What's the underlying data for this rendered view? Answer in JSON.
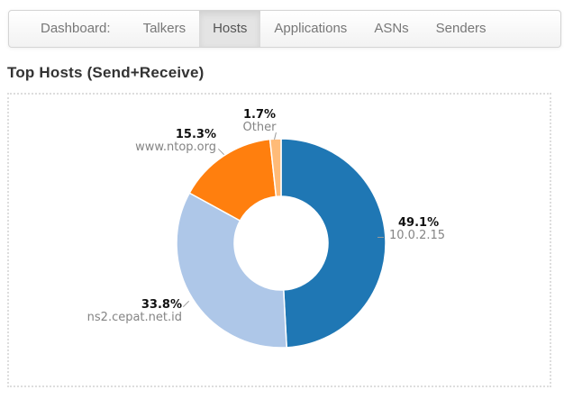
{
  "navbar": {
    "brand": "Dashboard:",
    "items": [
      {
        "label": "Talkers",
        "active": false
      },
      {
        "label": "Hosts",
        "active": true
      },
      {
        "label": "Applications",
        "active": false
      },
      {
        "label": "ASNs",
        "active": false
      },
      {
        "label": "Senders",
        "active": false
      }
    ]
  },
  "page": {
    "title": "Top Hosts (Send+Receive)"
  },
  "chart_data": {
    "type": "pie",
    "subtype": "donut",
    "title": "Top Hosts (Send+Receive)",
    "labels": [
      "10.0.2.15",
      "ns2.cepat.net.id",
      "www.ntop.org",
      "Other"
    ],
    "values": [
      49.1,
      33.8,
      15.3,
      1.7
    ],
    "pct_labels": [
      "49.1%",
      "33.8%",
      "15.3%",
      "1.7%"
    ],
    "colors": [
      "#1f77b4",
      "#aec7e8",
      "#ff7f0e",
      "#ffbb78"
    ],
    "start_angle_deg": -90,
    "direction": "clockwise",
    "inner_radius_ratio": 0.45,
    "legend": "none",
    "background": "#ffffff"
  }
}
